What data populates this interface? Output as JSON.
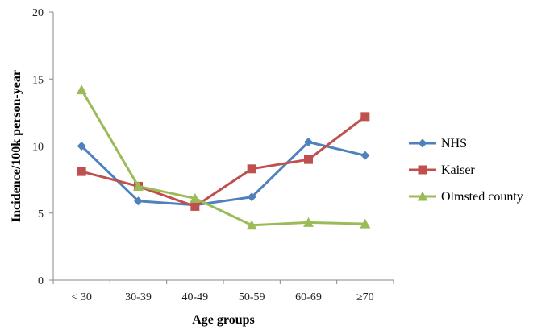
{
  "chart_data": {
    "type": "line",
    "title": "",
    "xlabel": "Age groups",
    "ylabel": "Incidence/100k person-year",
    "categories": [
      "< 30",
      "30-39",
      "40-49",
      "50-59",
      "60-69",
      "≥70"
    ],
    "ylim": [
      0,
      20
    ],
    "yticks": [
      0,
      5,
      10,
      15,
      20
    ],
    "grid": false,
    "legend_position": "right",
    "series": [
      {
        "name": "NHS",
        "color": "#4F81BD",
        "marker": "diamond",
        "values": [
          10.0,
          5.9,
          5.6,
          6.2,
          10.3,
          9.3
        ]
      },
      {
        "name": "Kaiser",
        "color": "#C0504D",
        "marker": "square",
        "values": [
          8.1,
          7.0,
          5.5,
          8.3,
          9.0,
          12.2
        ]
      },
      {
        "name": "Olmsted county",
        "color": "#9BBB59",
        "marker": "triangle",
        "values": [
          14.2,
          7.0,
          6.1,
          4.1,
          4.3,
          4.2
        ]
      }
    ]
  }
}
